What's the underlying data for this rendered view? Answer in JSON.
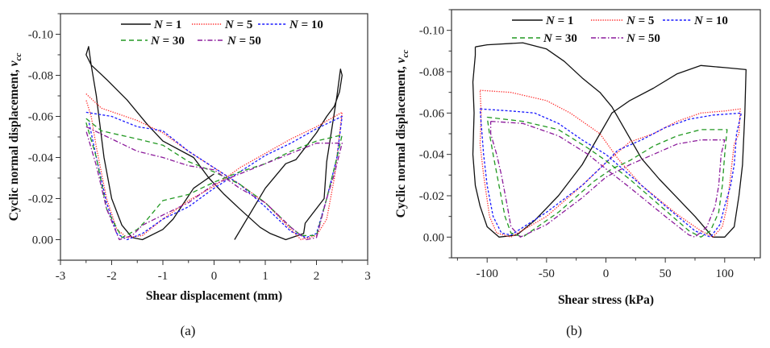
{
  "chart_data": [
    {
      "type": "line",
      "panel_label": "(a)",
      "xlabel": "Shear displacement (mm)",
      "ylabel": "Cyclic normal displacement, ",
      "ylabel_symbol": "v",
      "ylabel_subscript": "cc",
      "xlim": [
        -3,
        3
      ],
      "ylim": [
        -0.11,
        0.01
      ],
      "y_inverted": true,
      "xticks": [
        -3,
        -2,
        -1,
        0,
        1,
        2,
        3
      ],
      "xtick_labels": [
        "-3",
        "-2",
        "-1",
        "0",
        "1",
        "2",
        "3"
      ],
      "yticks": [
        -0.1,
        -0.08,
        -0.06,
        -0.04,
        -0.02,
        0.0
      ],
      "ytick_labels": [
        "-0.10",
        "-0.08",
        "-0.06",
        "-0.04",
        "-0.02",
        "0.00"
      ],
      "grid": false,
      "legend_position": "top",
      "series": [
        {
          "name": "N = 1",
          "color": "#111111",
          "style": "solid",
          "x": [
            0.4,
            1.0,
            1.4,
            1.6,
            2.0,
            2.2,
            2.35,
            2.45,
            2.5,
            2.47,
            2.4,
            2.2,
            2.15,
            1.78,
            1.75,
            1.4,
            1.1,
            0.9,
            0.5,
            0.2,
            -0.1,
            -0.4,
            -1.0,
            -1.3,
            -1.7,
            -2.1,
            -2.4,
            -2.5,
            -2.45,
            -2.4,
            -2.3,
            -2.25,
            -2.15,
            -2.0,
            -1.8,
            -1.6,
            -1.4,
            -1.0,
            -0.8,
            -0.4,
            0.0
          ],
          "y": [
            0,
            -0.025,
            -0.037,
            -0.039,
            -0.052,
            -0.06,
            -0.065,
            -0.072,
            -0.08,
            -0.083,
            -0.07,
            -0.038,
            -0.02,
            -0.008,
            -0.003,
            0,
            -0.003,
            -0.006,
            -0.015,
            -0.022,
            -0.03,
            -0.04,
            -0.048,
            -0.056,
            -0.068,
            -0.078,
            -0.085,
            -0.09,
            -0.094,
            -0.085,
            -0.07,
            -0.06,
            -0.04,
            -0.02,
            -0.007,
            -0.001,
            0,
            -0.005,
            -0.01,
            -0.025,
            -0.032
          ]
        },
        {
          "name": "N = 5",
          "color": "#ff2a2a",
          "style": "dotted",
          "x": [
            -2.5,
            -2.2,
            -1.5,
            -1.0,
            -0.5,
            0,
            0.5,
            1.0,
            1.5,
            1.7,
            2.0,
            2.2,
            2.35,
            2.5,
            2.0,
            1.5,
            1.0,
            0.5,
            0,
            -0.5,
            -1.0,
            -1.4,
            -1.7,
            -1.9,
            -2.1,
            -2.3,
            -2.4,
            -2.5
          ],
          "y": [
            -0.071,
            -0.064,
            -0.058,
            -0.052,
            -0.043,
            -0.035,
            -0.027,
            -0.018,
            -0.005,
            0,
            -0.002,
            -0.01,
            -0.03,
            -0.062,
            -0.055,
            -0.049,
            -0.042,
            -0.035,
            -0.026,
            -0.019,
            -0.01,
            -0.002,
            -0.001,
            -0.005,
            -0.02,
            -0.045,
            -0.06,
            -0.068
          ]
        },
        {
          "name": "N = 10",
          "color": "#1a1aff",
          "style": "short-dash",
          "x": [
            -2.5,
            -2.0,
            -1.5,
            -1.0,
            -0.5,
            0,
            0.5,
            1.0,
            1.5,
            1.8,
            2.0,
            2.2,
            2.4,
            2.5,
            2.0,
            1.5,
            1.0,
            0.5,
            0,
            -0.5,
            -1.0,
            -1.4,
            -1.7,
            -1.9,
            -2.1,
            -2.3,
            -2.45
          ],
          "y": [
            -0.062,
            -0.06,
            -0.055,
            -0.053,
            -0.043,
            -0.035,
            -0.027,
            -0.016,
            -0.004,
            -0.001,
            -0.003,
            -0.02,
            -0.04,
            -0.06,
            -0.054,
            -0.047,
            -0.041,
            -0.033,
            -0.025,
            -0.016,
            -0.01,
            -0.003,
            0,
            -0.003,
            -0.018,
            -0.04,
            -0.058
          ]
        },
        {
          "name": "N = 30",
          "color": "#229922",
          "style": "dashed",
          "x": [
            -2.5,
            -2.2,
            -1.5,
            -1.0,
            -0.5,
            0,
            0.5,
            1.0,
            1.5,
            1.7,
            2.0,
            2.2,
            2.4,
            2.5,
            2.0,
            1.5,
            1.0,
            0.5,
            0,
            -0.5,
            -1.0,
            -1.3,
            -1.5,
            -1.8,
            -2.1,
            -2.3,
            -2.5
          ],
          "y": [
            -0.059,
            -0.053,
            -0.049,
            -0.046,
            -0.038,
            -0.033,
            -0.027,
            -0.018,
            -0.006,
            -0.002,
            -0.002,
            -0.02,
            -0.04,
            -0.051,
            -0.048,
            -0.043,
            -0.037,
            -0.033,
            -0.028,
            -0.022,
            -0.019,
            -0.01,
            -0.005,
            -0.001,
            -0.015,
            -0.04,
            -0.057
          ]
        },
        {
          "name": "N = 50",
          "color": "#8b1a9b",
          "style": "dash-dot",
          "x": [
            -2.5,
            -2.0,
            -1.5,
            -1.0,
            -0.5,
            0,
            0.5,
            1.0,
            1.5,
            1.8,
            2.0,
            2.2,
            2.35,
            2.5,
            2.0,
            1.5,
            1.0,
            0.5,
            0,
            -0.5,
            -1.0,
            -1.4,
            -1.6,
            -1.85,
            -2.1,
            -2.3,
            -2.5
          ],
          "y": [
            -0.055,
            -0.049,
            -0.043,
            -0.04,
            -0.036,
            -0.034,
            -0.025,
            -0.018,
            -0.006,
            0,
            -0.001,
            -0.02,
            -0.032,
            -0.047,
            -0.047,
            -0.042,
            -0.037,
            -0.032,
            -0.027,
            -0.018,
            -0.012,
            -0.007,
            -0.002,
            0,
            -0.015,
            -0.036,
            -0.053
          ]
        }
      ]
    },
    {
      "type": "line",
      "panel_label": "(b)",
      "xlabel": "Shear stress (kPa)",
      "ylabel": "Cyclic normal displacement, ",
      "ylabel_symbol": "v",
      "ylabel_subscript": "cc",
      "xlim": [
        -130,
        130
      ],
      "ylim": [
        -0.11,
        0.01
      ],
      "y_inverted": true,
      "xticks": [
        -100,
        -50,
        0,
        50,
        100
      ],
      "xtick_labels": [
        "-100",
        "-50",
        "0",
        "50",
        "100"
      ],
      "yticks": [
        -0.1,
        -0.08,
        -0.06,
        -0.04,
        -0.02,
        0.0
      ],
      "ytick_labels": [
        "-0.10",
        "-0.08",
        "-0.06",
        "-0.04",
        "-0.02",
        "0.00"
      ],
      "grid": false,
      "legend_position": "top",
      "series": [
        {
          "name": "N = 1",
          "color": "#111111",
          "style": "solid",
          "x": [
            -110,
            -100,
            -70,
            -50,
            -35,
            -20,
            -5,
            5,
            15,
            30,
            45,
            60,
            75,
            90,
            100,
            108,
            112,
            115,
            117,
            118,
            100,
            80,
            60,
            40,
            20,
            5,
            -5,
            -20,
            -40,
            -60,
            -75,
            -90,
            -100,
            -106,
            -110,
            -112,
            -111,
            -112,
            -110,
            -110
          ],
          "y": [
            -0.092,
            -0.093,
            -0.094,
            -0.091,
            -0.085,
            -0.077,
            -0.07,
            -0.063,
            -0.053,
            -0.038,
            -0.028,
            -0.019,
            -0.01,
            0,
            0,
            -0.005,
            -0.02,
            -0.035,
            -0.06,
            -0.081,
            -0.082,
            -0.083,
            -0.079,
            -0.072,
            -0.066,
            -0.06,
            -0.05,
            -0.035,
            -0.02,
            -0.008,
            -0.001,
            0,
            -0.005,
            -0.015,
            -0.025,
            -0.04,
            -0.06,
            -0.075,
            -0.088,
            -0.092
          ]
        },
        {
          "name": "N = 5",
          "color": "#ff2a2a",
          "style": "dotted",
          "x": [
            -106,
            -80,
            -50,
            -30,
            -5,
            10,
            30,
            60,
            80,
            90,
            98,
            102,
            105,
            108,
            112,
            113,
            100,
            80,
            60,
            40,
            20,
            0,
            -20,
            -50,
            -80,
            -92,
            -98,
            -100,
            -103,
            -106,
            -105,
            -106
          ],
          "y": [
            -0.071,
            -0.07,
            -0.066,
            -0.06,
            -0.05,
            -0.038,
            -0.025,
            -0.011,
            -0.003,
            0,
            -0.005,
            -0.015,
            -0.03,
            -0.045,
            -0.05,
            -0.062,
            -0.061,
            -0.06,
            -0.056,
            -0.05,
            -0.046,
            -0.036,
            -0.025,
            -0.01,
            0,
            -0.002,
            -0.01,
            -0.018,
            -0.03,
            -0.045,
            -0.06,
            -0.071
          ]
        },
        {
          "name": "N = 10",
          "color": "#1a1aff",
          "style": "short-dash",
          "x": [
            -106,
            -80,
            -60,
            -40,
            -20,
            0,
            20,
            50,
            75,
            88,
            96,
            100,
            105,
            108,
            110,
            114,
            90,
            70,
            50,
            30,
            10,
            0,
            -20,
            -50,
            -80,
            -88,
            -95,
            -100,
            -103,
            -105,
            -106
          ],
          "y": [
            -0.062,
            -0.061,
            -0.06,
            -0.055,
            -0.047,
            -0.04,
            -0.03,
            -0.015,
            -0.003,
            0,
            -0.006,
            -0.015,
            -0.025,
            -0.035,
            -0.05,
            -0.06,
            -0.059,
            -0.057,
            -0.053,
            -0.047,
            -0.042,
            -0.036,
            -0.025,
            -0.012,
            -0.001,
            -0.002,
            -0.01,
            -0.025,
            -0.04,
            -0.055,
            -0.062
          ]
        },
        {
          "name": "N = 30",
          "color": "#229922",
          "style": "dashed",
          "x": [
            -100,
            -70,
            -40,
            -15,
            0,
            20,
            50,
            70,
            80,
            88,
            95,
            98,
            100,
            102,
            80,
            60,
            40,
            20,
            5,
            -10,
            -40,
            -70,
            -80,
            -85,
            -90,
            -95,
            -98,
            -100
          ],
          "y": [
            -0.058,
            -0.056,
            -0.052,
            -0.043,
            -0.037,
            -0.028,
            -0.013,
            -0.003,
            0,
            -0.003,
            -0.012,
            -0.025,
            -0.04,
            -0.052,
            -0.052,
            -0.049,
            -0.044,
            -0.037,
            -0.033,
            -0.027,
            -0.012,
            0,
            -0.002,
            -0.01,
            -0.025,
            -0.04,
            -0.05,
            -0.058
          ]
        },
        {
          "name": "N = 50",
          "color": "#8b1a9b",
          "style": "dash-dot",
          "x": [
            -97,
            -70,
            -40,
            -15,
            0,
            20,
            50,
            70,
            75,
            85,
            92,
            95,
            97,
            100,
            80,
            60,
            40,
            20,
            0,
            -20,
            -50,
            -72,
            -80,
            -83,
            -88,
            -92,
            -97,
            -97
          ],
          "y": [
            -0.056,
            -0.055,
            -0.049,
            -0.04,
            -0.033,
            -0.024,
            -0.01,
            -0.001,
            0,
            -0.005,
            -0.015,
            -0.025,
            -0.04,
            -0.047,
            -0.047,
            -0.045,
            -0.04,
            -0.035,
            -0.029,
            -0.019,
            -0.006,
            0,
            -0.005,
            -0.015,
            -0.03,
            -0.04,
            -0.05,
            -0.056
          ]
        }
      ]
    }
  ]
}
